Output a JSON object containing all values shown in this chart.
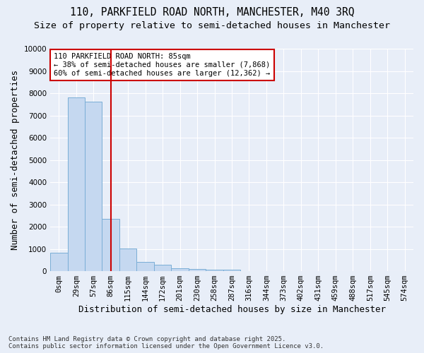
{
  "title_line1": "110, PARKFIELD ROAD NORTH, MANCHESTER, M40 3RQ",
  "title_line2": "Size of property relative to semi-detached houses in Manchester",
  "xlabel": "Distribution of semi-detached houses by size in Manchester",
  "ylabel": "Number of semi-detached properties",
  "footnote_line1": "Contains HM Land Registry data © Crown copyright and database right 2025.",
  "footnote_line2": "Contains public sector information licensed under the Open Government Licence v3.0.",
  "bin_labels": [
    "0sqm",
    "29sqm",
    "57sqm",
    "86sqm",
    "115sqm",
    "144sqm",
    "172sqm",
    "201sqm",
    "230sqm",
    "258sqm",
    "287sqm",
    "316sqm",
    "344sqm",
    "373sqm",
    "402sqm",
    "431sqm",
    "459sqm",
    "488sqm",
    "517sqm",
    "545sqm",
    "574sqm"
  ],
  "bar_values": [
    840,
    7800,
    7620,
    2360,
    1020,
    430,
    290,
    130,
    110,
    80,
    60,
    0,
    0,
    0,
    0,
    0,
    0,
    0,
    0,
    0,
    0
  ],
  "bar_color": "#c5d8f0",
  "bar_edge_color": "#7aaed6",
  "property_bin_index": 3,
  "annotation_title": "110 PARKFIELD ROAD NORTH: 85sqm",
  "annotation_line2": "← 38% of semi-detached houses are smaller (7,868)",
  "annotation_line3": "60% of semi-detached houses are larger (12,362) →",
  "vline_color": "#cc0000",
  "annotation_box_color": "#ffffff",
  "annotation_box_edge_color": "#cc0000",
  "ylim": [
    0,
    10000
  ],
  "yticks": [
    0,
    1000,
    2000,
    3000,
    4000,
    5000,
    6000,
    7000,
    8000,
    9000,
    10000
  ],
  "background_color": "#e8eef8",
  "grid_color": "#ffffff",
  "title_fontsize": 10.5,
  "subtitle_fontsize": 9.5,
  "axis_label_fontsize": 9,
  "tick_fontsize": 7.5,
  "annotation_fontsize": 7.5,
  "footnote_fontsize": 6.5
}
